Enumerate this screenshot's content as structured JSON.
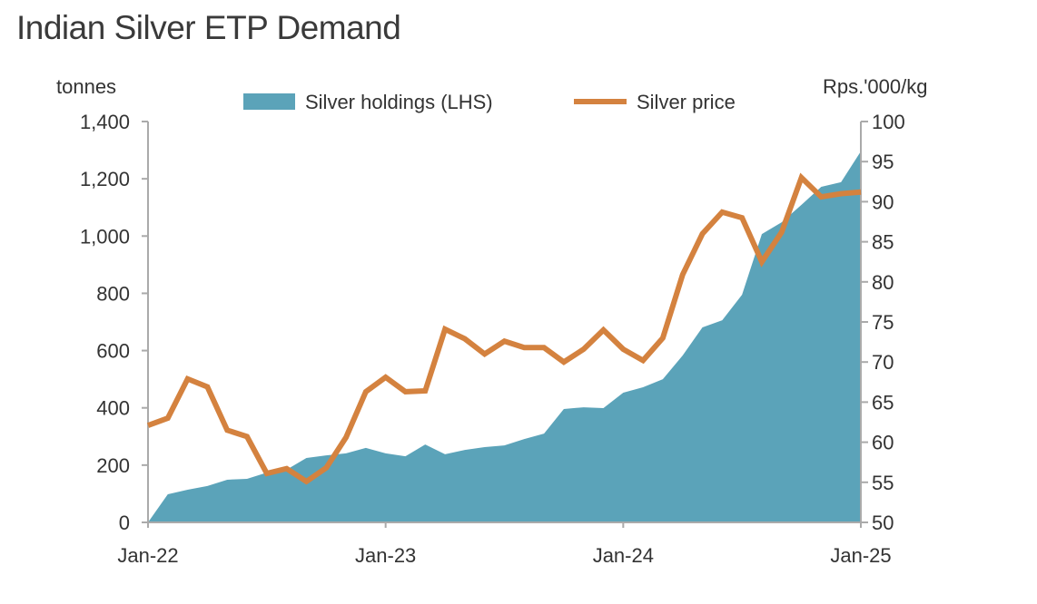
{
  "chart_data": {
    "type": "area+line",
    "title": "Indian Silver ETP Demand",
    "left_axis_label": "tonnes",
    "right_axis_label": "Rps.'000/kg",
    "left_ylim": [
      0,
      1400
    ],
    "right_ylim": [
      50,
      100
    ],
    "left_ticks": [
      "0",
      "200",
      "400",
      "600",
      "800",
      "1,000",
      "1,200",
      "1,400"
    ],
    "right_ticks": [
      "50",
      "55",
      "60",
      "65",
      "70",
      "75",
      "80",
      "85",
      "90",
      "95",
      "100"
    ],
    "x_tick_labels": [
      "Jan-22",
      "Jan-23",
      "Jan-24",
      "Jan-25"
    ],
    "x": [
      "Jan-22",
      "Feb-22",
      "Mar-22",
      "Apr-22",
      "May-22",
      "Jun-22",
      "Jul-22",
      "Aug-22",
      "Sep-22",
      "Oct-22",
      "Nov-22",
      "Dec-22",
      "Jan-23",
      "Feb-23",
      "Mar-23",
      "Apr-23",
      "May-23",
      "Jun-23",
      "Jul-23",
      "Aug-23",
      "Sep-23",
      "Oct-23",
      "Nov-23",
      "Dec-23",
      "Jan-24",
      "Feb-24",
      "Mar-24",
      "Apr-24",
      "May-24",
      "Jun-24",
      "Jul-24",
      "Aug-24",
      "Sep-24",
      "Oct-24",
      "Nov-24",
      "Dec-24",
      "Jan-25"
    ],
    "grid": false,
    "legend_position": "top",
    "series": [
      {
        "name": "Silver holdings (LHS)",
        "type": "area",
        "axis": "left",
        "color": "#5ba3b9",
        "values": [
          0,
          98,
          114,
          127,
          149,
          152,
          174,
          184,
          225,
          234,
          241,
          260,
          241,
          231,
          272,
          238,
          253,
          263,
          269,
          291,
          310,
          396,
          402,
          399,
          453,
          472,
          500,
          583,
          681,
          706,
          795,
          1007,
          1048,
          1109,
          1172,
          1188,
          1296
        ]
      },
      {
        "name": "Silver price",
        "type": "line",
        "axis": "right",
        "color": "#d4823f",
        "values": [
          62.1,
          63.0,
          67.9,
          66.9,
          61.5,
          60.7,
          56.1,
          56.7,
          55.1,
          56.8,
          60.6,
          66.3,
          68.1,
          66.3,
          66.4,
          74.1,
          72.9,
          71.0,
          72.6,
          71.8,
          71.8,
          70.0,
          71.6,
          74.0,
          71.6,
          70.2,
          73.0,
          80.9,
          86.0,
          88.7,
          88.0,
          82.5,
          86.2,
          93.0,
          90.6,
          91.0,
          91.2
        ]
      }
    ]
  }
}
